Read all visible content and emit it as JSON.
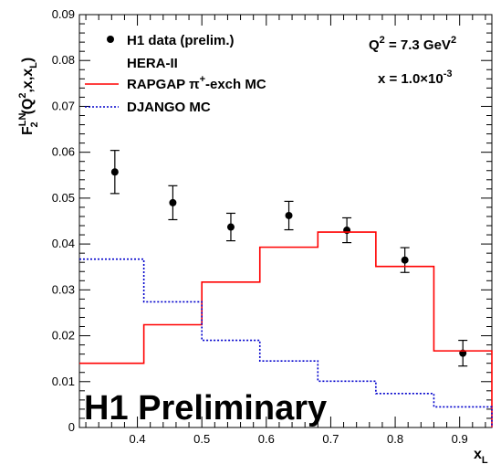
{
  "chart_data": {
    "type": "scatter",
    "xlim": [
      0.31,
      0.95
    ],
    "ylim": [
      0,
      0.09
    ],
    "x_ticks": [
      0.4,
      0.5,
      0.6,
      0.7,
      0.8,
      0.9
    ],
    "x_tick_labels": [
      "0.4",
      "0.5",
      "0.6",
      "0.7",
      "0.8",
      "0.9"
    ],
    "y_ticks": [
      0,
      0.01,
      0.02,
      0.03,
      0.04,
      0.05,
      0.06,
      0.07,
      0.08,
      0.09
    ],
    "y_tick_labels": [
      "0",
      "0.01",
      "0.02",
      "0.03",
      "0.04",
      "0.05",
      "0.06",
      "0.07",
      "0.08",
      "0.09"
    ],
    "xlabel": {
      "main": "x",
      "sub": "L"
    },
    "ylabel": {
      "f": "F",
      "sup": "LN",
      "sub": "2",
      "args_open": "(Q",
      "q_sup": "2",
      "args_mid": ",x,x",
      "l_sub": "L",
      "args_close": ")"
    },
    "annotations": {
      "q2": {
        "main": "Q",
        "sup": "2",
        "eq": " = 7.3 GeV",
        "unit_sup": "2"
      },
      "x": {
        "main": "x = 1.0×10",
        "sup": "-3"
      },
      "watermark": "H1 Preliminary"
    },
    "legend": {
      "placement": "top-left",
      "entries": [
        {
          "label": "H1 data (prelim.)",
          "style": "marker"
        },
        {
          "label": "HERA-II",
          "style": "none"
        },
        {
          "label": "RAPGAP π",
          "sup": "+",
          "tail": "-exch MC",
          "style": "solid-red"
        },
        {
          "label": "DJANGO MC",
          "style": "dotted-blue"
        }
      ]
    },
    "series": [
      {
        "name": "H1 data (prelim.)",
        "kind": "points",
        "color": "#000000",
        "points": [
          {
            "x": 0.365,
            "y": 0.0557,
            "err": 0.0047
          },
          {
            "x": 0.455,
            "y": 0.049,
            "err": 0.0037
          },
          {
            "x": 0.545,
            "y": 0.0437,
            "err": 0.003
          },
          {
            "x": 0.635,
            "y": 0.0462,
            "err": 0.0031
          },
          {
            "x": 0.725,
            "y": 0.043,
            "err": 0.0027
          },
          {
            "x": 0.815,
            "y": 0.0365,
            "err": 0.0027
          },
          {
            "x": 0.905,
            "y": 0.0162,
            "err": 0.0028
          }
        ]
      },
      {
        "name": "RAPGAP π+-exch MC",
        "kind": "histogram",
        "color": "#ff0000",
        "edges": [
          0.31,
          0.41,
          0.5,
          0.59,
          0.68,
          0.77,
          0.86,
          0.95
        ],
        "values": [
          0.014,
          0.0224,
          0.0317,
          0.0393,
          0.0426,
          0.0351,
          0.0167
        ]
      },
      {
        "name": "DJANGO MC",
        "kind": "histogram",
        "color": "#0000cc",
        "edges": [
          0.31,
          0.41,
          0.5,
          0.59,
          0.68,
          0.77,
          0.86,
          0.95
        ],
        "values": [
          0.0367,
          0.0274,
          0.019,
          0.0145,
          0.0101,
          0.0074,
          0.0045
        ]
      }
    ]
  }
}
